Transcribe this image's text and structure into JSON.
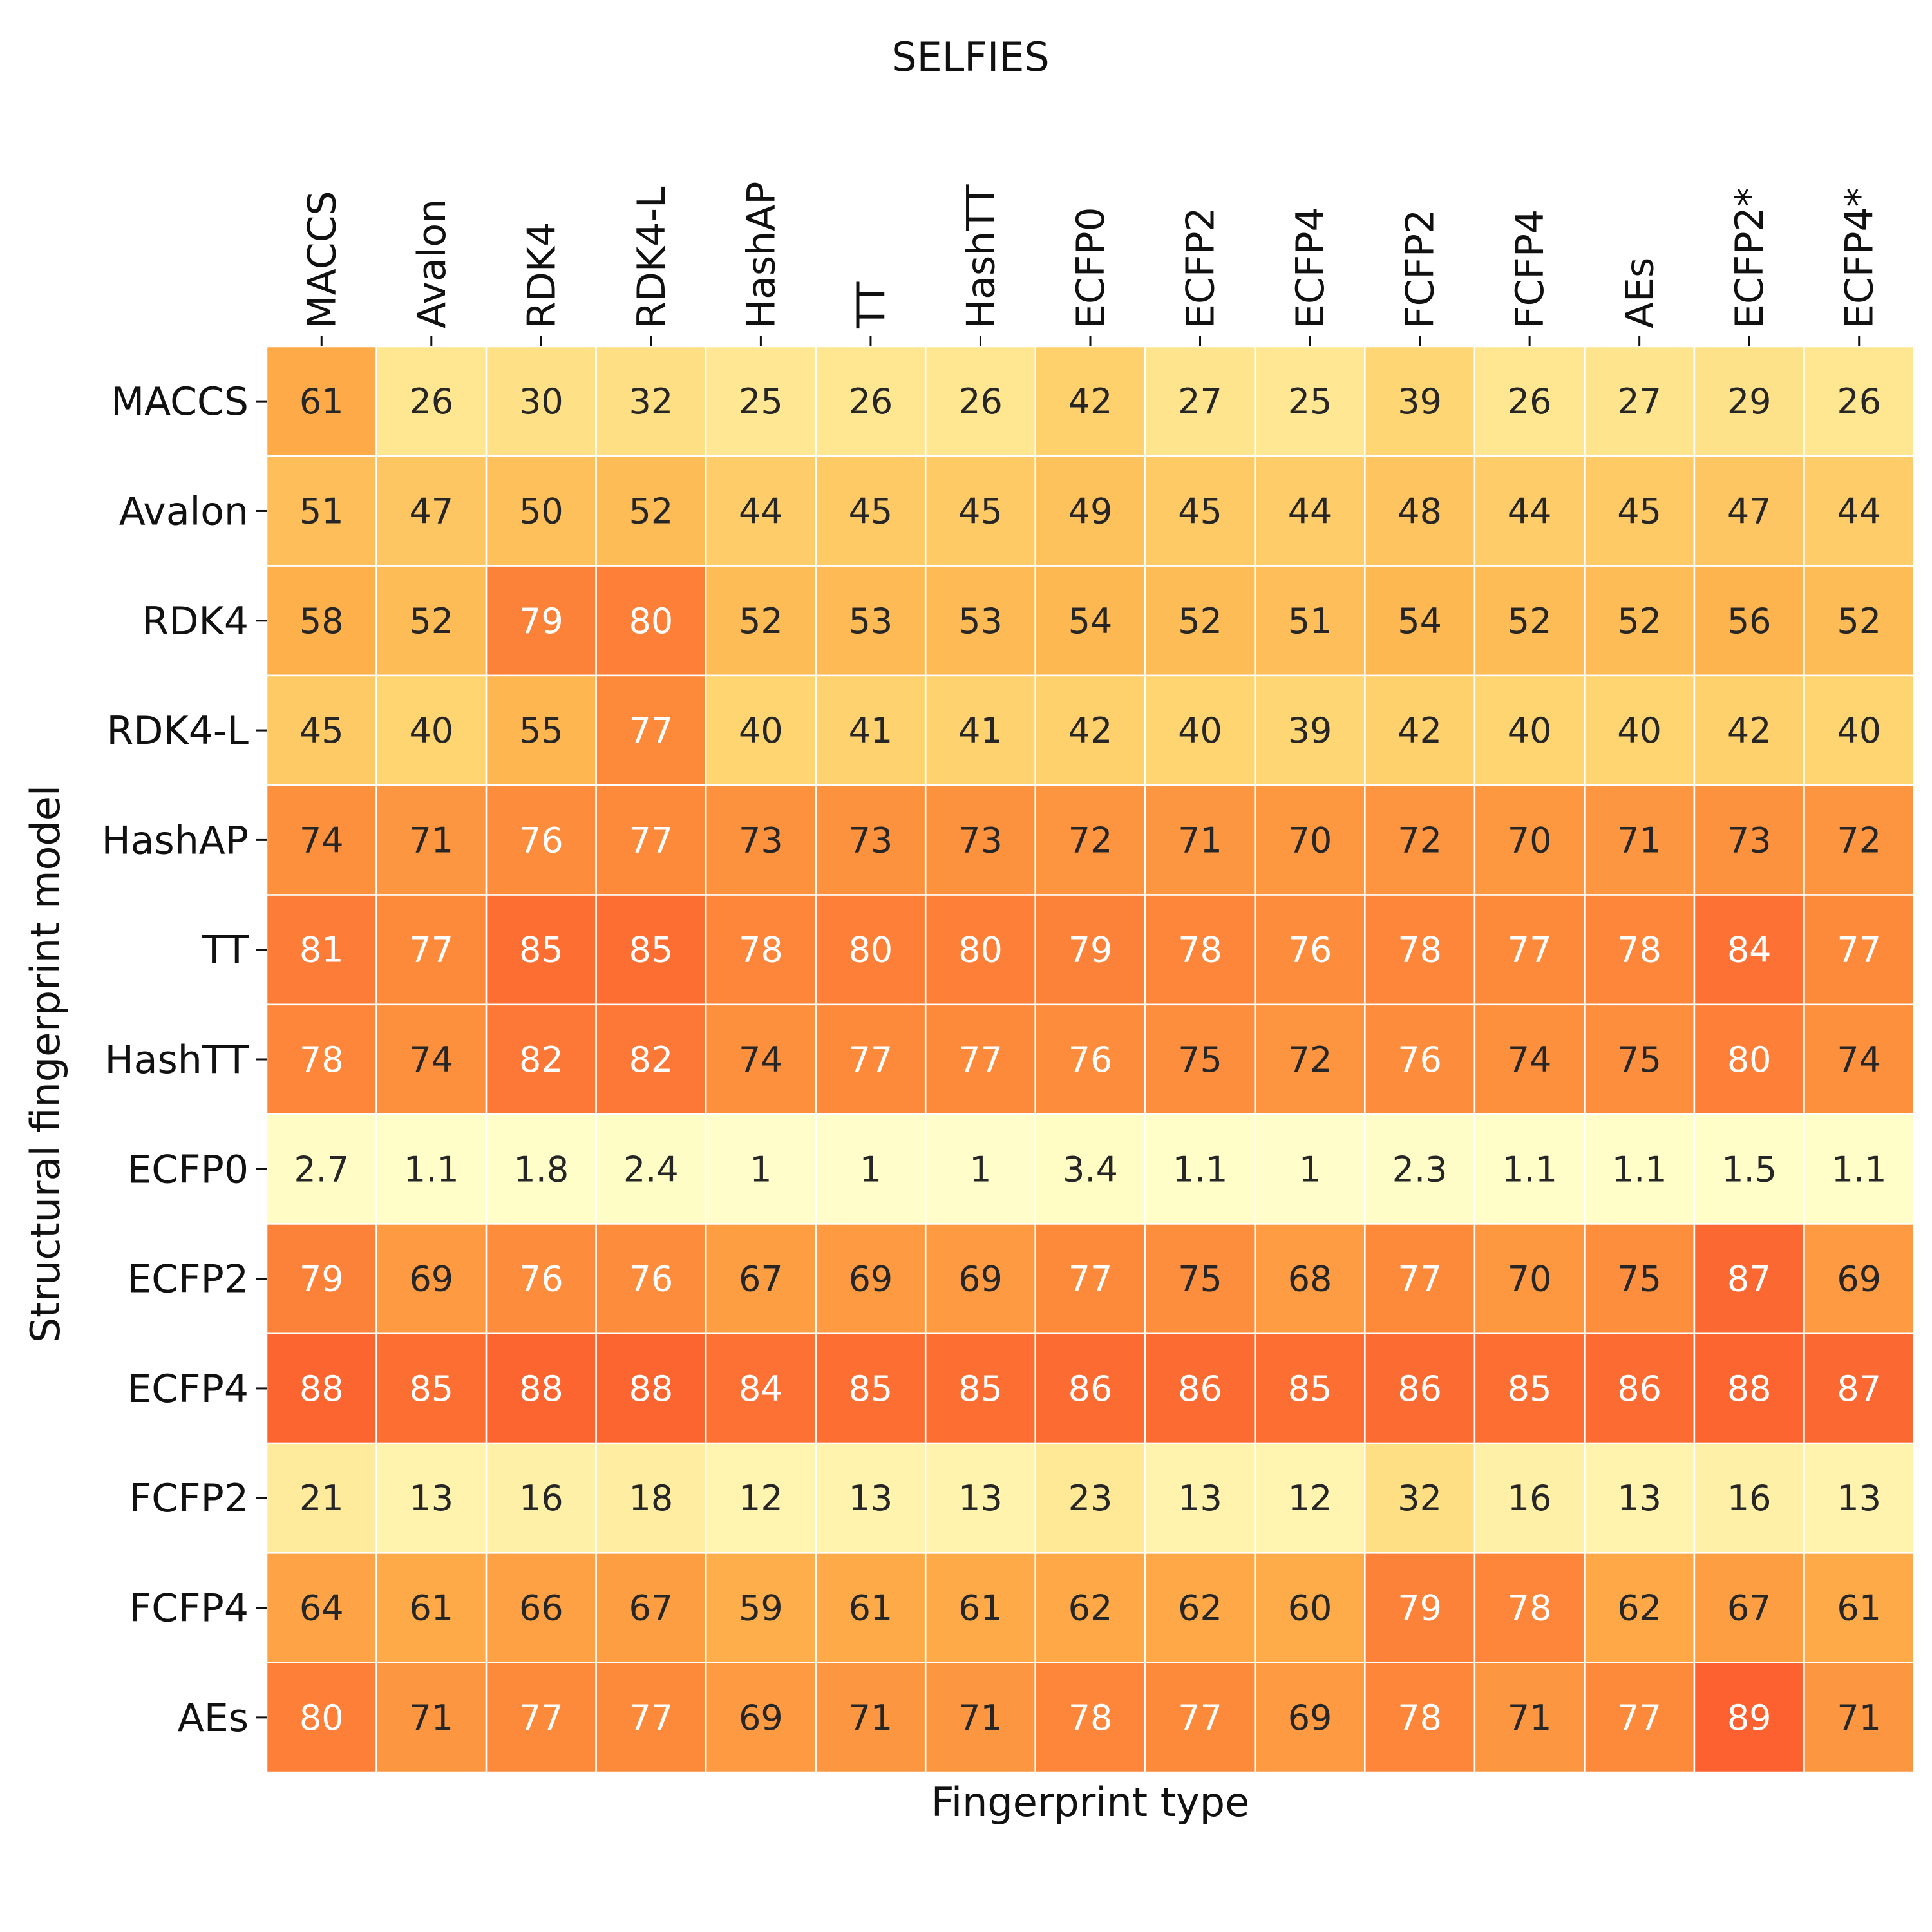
{
  "chart_data": {
    "type": "heatmap",
    "title": "SELFIES",
    "xlabel": "Fingerprint type",
    "ylabel": "Structural fingerprint model",
    "x_categories": [
      "MACCS",
      "Avalon",
      "RDK4",
      "RDK4-L",
      "HashAP",
      "TT",
      "HashTT",
      "ECFP0",
      "ECFP2",
      "ECFP4",
      "FCFP2",
      "FCFP4",
      "AEs",
      "ECFP2*",
      "ECFP4*"
    ],
    "y_categories": [
      "MACCS",
      "Avalon",
      "RDK4",
      "RDK4-L",
      "HashAP",
      "TT",
      "HashTT",
      "ECFP0",
      "ECFP2",
      "ECFP4",
      "FCFP2",
      "FCFP4",
      "AEs"
    ],
    "x_tick_position": "top",
    "colorscale": "YlOrRd",
    "value_range": [
      0,
      100
    ],
    "grid_lines": "white",
    "values": [
      [
        61,
        26,
        30,
        32,
        25,
        26,
        26,
        42,
        27,
        25,
        39,
        26,
        27,
        29,
        26
      ],
      [
        51,
        47,
        50,
        52,
        44,
        45,
        45,
        49,
        45,
        44,
        48,
        44,
        45,
        47,
        44
      ],
      [
        58,
        52,
        79,
        80,
        52,
        53,
        53,
        54,
        52,
        51,
        54,
        52,
        52,
        56,
        52
      ],
      [
        45,
        40,
        55,
        77,
        40,
        41,
        41,
        42,
        40,
        39,
        42,
        40,
        40,
        42,
        40
      ],
      [
        74,
        71,
        76,
        77,
        73,
        73,
        73,
        72,
        71,
        70,
        72,
        70,
        71,
        73,
        72
      ],
      [
        81,
        77,
        85,
        85,
        78,
        80,
        80,
        79,
        78,
        76,
        78,
        77,
        78,
        84,
        77
      ],
      [
        78,
        74,
        82,
        82,
        74,
        77,
        77,
        76,
        75,
        72,
        76,
        74,
        75,
        80,
        74
      ],
      [
        2.7,
        1.1,
        1.8,
        2.4,
        1,
        1,
        1,
        3.4,
        1.1,
        1,
        2.3,
        1.1,
        1.1,
        1.5,
        1.1
      ],
      [
        79,
        69,
        76,
        76,
        67,
        69,
        69,
        77,
        75,
        68,
        77,
        70,
        75,
        87,
        69
      ],
      [
        88,
        85,
        88,
        88,
        84,
        85,
        85,
        86,
        86,
        85,
        86,
        85,
        86,
        88,
        87
      ],
      [
        21,
        13,
        16,
        18,
        12,
        13,
        13,
        23,
        13,
        12,
        32,
        16,
        13,
        16,
        13
      ],
      [
        64,
        61,
        66,
        67,
        59,
        61,
        61,
        62,
        62,
        60,
        79,
        78,
        62,
        67,
        61
      ],
      [
        80,
        71,
        77,
        77,
        69,
        71,
        71,
        78,
        77,
        69,
        78,
        71,
        77,
        89,
        71
      ]
    ]
  }
}
